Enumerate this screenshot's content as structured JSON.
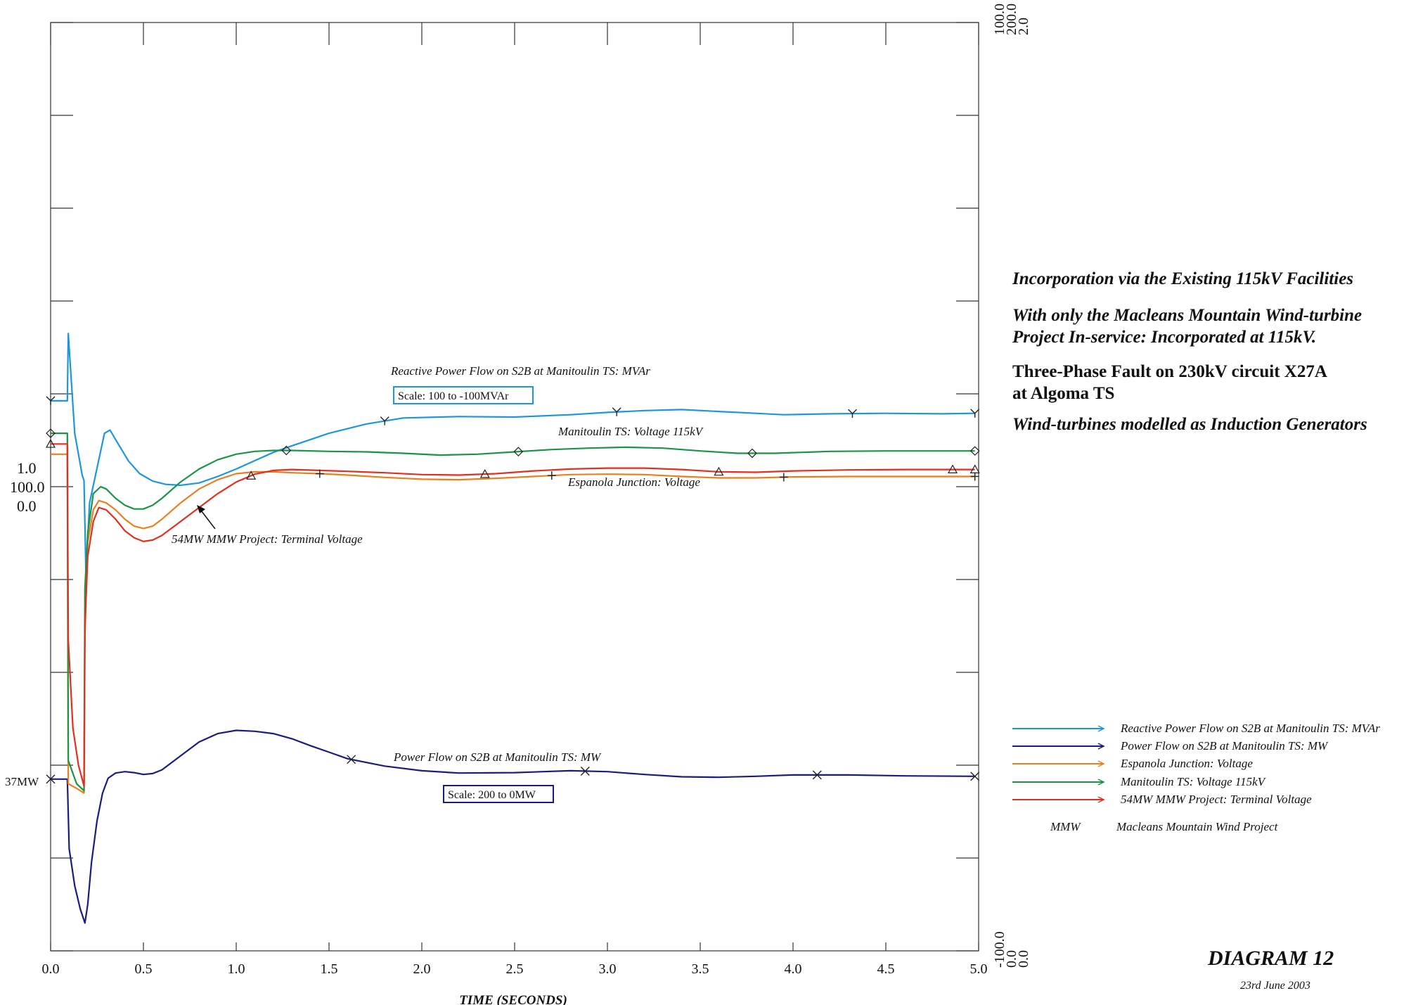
{
  "side_text": {
    "line1": "Incorporation via the Existing 115kV Facilities",
    "line2a": "With only the Macleans Mountain Wind-turbine",
    "line2b": "Project In-service:  Incorporated at 115kV.",
    "line3a": "Three-Phase Fault on 230kV circuit X27A",
    "line3b": "at Algoma TS",
    "line4": "Wind-turbines modelled as Induction Generators"
  },
  "diagram": {
    "label": "DIAGRAM 12",
    "date": "23rd June 2003"
  },
  "chart_data": {
    "type": "line",
    "xlabel": "TIME  (SECONDS)",
    "xlim": [
      0.0,
      5.0
    ],
    "x_ticks": [
      "0.0",
      "0.5",
      "1.0",
      "1.5",
      "2.0",
      "2.5",
      "3.0",
      "3.5",
      "4.0",
      "4.5",
      "5.0"
    ],
    "right_axis_top": [
      "100.0",
      "200.0",
      "2.0"
    ],
    "right_axis_bottom": [
      "-100.0",
      "0.0",
      "0.0"
    ],
    "left_axis_mid": [
      "1.0",
      "100.0",
      "0.0"
    ],
    "left_annotation": "37MW",
    "annotations": {
      "reactive_label": "Reactive Power Flow on S2B at Manitoulin TS: MVAr",
      "reactive_scale": "Scale: 100 to -100MVAr",
      "manitoulin_label": "Manitoulin TS: Voltage 115kV",
      "espanola_label": "Espanola Junction: Voltage",
      "terminal_label": "54MW MMW Project: Terminal Voltage",
      "power_label": "Power Flow on S2B at Manitoulin TS: MW",
      "power_scale": "Scale: 200 to 0MW"
    },
    "legend": {
      "placement": "bottom-right",
      "entries": [
        "Reactive Power Flow on S2B at Manitoulin TS: MVAr",
        "Power Flow on S2B at Manitoulin TS: MW",
        "Espanola Junction: Voltage",
        "Manitoulin TS: Voltage 115kV",
        "54MW MMW Project: Terminal Voltage"
      ],
      "abbrev_key": "MMW",
      "abbrev_value": "Macleans Mountain Wind Project"
    },
    "series": [
      {
        "name": "Reactive Power Flow on S2B at Manitoulin TS: MVAr",
        "color": "#1e96dc",
        "scale": [
          -100,
          100
        ],
        "points": [
          [
            0,
            18.5
          ],
          [
            0.09,
            18.5
          ],
          [
            0.095,
            33
          ],
          [
            0.13,
            11.5
          ],
          [
            0.17,
            2.5
          ],
          [
            0.18,
            1.3
          ],
          [
            0.19,
            -18.5
          ],
          [
            0.21,
            -3.5
          ],
          [
            0.25,
            4
          ],
          [
            0.29,
            11.5
          ],
          [
            0.32,
            12.2
          ],
          [
            0.36,
            9.5
          ],
          [
            0.42,
            5.5
          ],
          [
            0.48,
            2.8
          ],
          [
            0.55,
            1.2
          ],
          [
            0.62,
            0.5
          ],
          [
            0.7,
            0.3
          ],
          [
            0.8,
            0.8
          ],
          [
            0.9,
            2.2
          ],
          [
            1.0,
            3.8
          ],
          [
            1.1,
            5.6
          ],
          [
            1.2,
            7.4
          ],
          [
            1.3,
            8.8
          ],
          [
            1.5,
            11.5
          ],
          [
            1.7,
            13.5
          ],
          [
            1.9,
            14.8
          ],
          [
            2.2,
            15.1
          ],
          [
            2.5,
            15.0
          ],
          [
            2.8,
            15.5
          ],
          [
            3.0,
            16.0
          ],
          [
            3.2,
            16.4
          ],
          [
            3.4,
            16.6
          ],
          [
            3.6,
            16.2
          ],
          [
            3.8,
            15.8
          ],
          [
            3.95,
            15.5
          ],
          [
            4.2,
            15.7
          ],
          [
            4.5,
            15.8
          ],
          [
            4.8,
            15.7
          ],
          [
            4.98,
            15.8
          ]
        ]
      },
      {
        "name": "Power Flow on S2B at Manitoulin TS: MW",
        "color": "#1c1c7a",
        "scale": [
          0,
          200
        ],
        "points": [
          [
            0,
            37
          ],
          [
            0.09,
            37
          ],
          [
            0.1,
            22
          ],
          [
            0.13,
            14
          ],
          [
            0.16,
            9
          ],
          [
            0.185,
            6
          ],
          [
            0.2,
            10
          ],
          [
            0.22,
            19
          ],
          [
            0.25,
            28
          ],
          [
            0.28,
            34
          ],
          [
            0.31,
            37.2
          ],
          [
            0.35,
            38.3
          ],
          [
            0.4,
            38.6
          ],
          [
            0.45,
            38.4
          ],
          [
            0.5,
            38.0
          ],
          [
            0.55,
            38.2
          ],
          [
            0.6,
            39
          ],
          [
            0.7,
            42
          ],
          [
            0.8,
            45
          ],
          [
            0.9,
            46.8
          ],
          [
            1.0,
            47.5
          ],
          [
            1.1,
            47.3
          ],
          [
            1.2,
            46.8
          ],
          [
            1.3,
            45.7
          ],
          [
            1.4,
            44.2
          ],
          [
            1.5,
            42.8
          ],
          [
            1.6,
            41.4
          ],
          [
            1.8,
            39.8
          ],
          [
            2.0,
            38.8
          ],
          [
            2.2,
            38.3
          ],
          [
            2.5,
            38.4
          ],
          [
            2.8,
            38.8
          ],
          [
            3.0,
            38.6
          ],
          [
            3.2,
            38.0
          ],
          [
            3.4,
            37.5
          ],
          [
            3.6,
            37.4
          ],
          [
            3.8,
            37.6
          ],
          [
            4.0,
            37.9
          ],
          [
            4.3,
            37.9
          ],
          [
            4.6,
            37.7
          ],
          [
            4.98,
            37.6
          ]
        ]
      },
      {
        "name": "Espanola Junction: Voltage",
        "color": "#e88020",
        "scale": [
          0,
          2
        ],
        "points": [
          [
            0,
            1.07
          ],
          [
            0.09,
            1.07
          ],
          [
            0.095,
            0.36
          ],
          [
            0.14,
            0.35
          ],
          [
            0.18,
            0.34
          ],
          [
            0.185,
            0.68
          ],
          [
            0.2,
            0.88
          ],
          [
            0.23,
            0.95
          ],
          [
            0.26,
            0.97
          ],
          [
            0.3,
            0.965
          ],
          [
            0.35,
            0.95
          ],
          [
            0.4,
            0.93
          ],
          [
            0.45,
            0.915
          ],
          [
            0.5,
            0.91
          ],
          [
            0.55,
            0.915
          ],
          [
            0.6,
            0.93
          ],
          [
            0.7,
            0.965
          ],
          [
            0.8,
            0.995
          ],
          [
            0.9,
            1.015
          ],
          [
            1.0,
            1.028
          ],
          [
            1.1,
            1.032
          ],
          [
            1.2,
            1.032
          ],
          [
            1.3,
            1.03
          ],
          [
            1.45,
            1.028
          ],
          [
            1.6,
            1.025
          ],
          [
            1.8,
            1.02
          ],
          [
            2.0,
            1.016
          ],
          [
            2.2,
            1.015
          ],
          [
            2.4,
            1.018
          ],
          [
            2.6,
            1.022
          ],
          [
            2.8,
            1.026
          ],
          [
            3.0,
            1.027
          ],
          [
            3.2,
            1.026
          ],
          [
            3.4,
            1.022
          ],
          [
            3.6,
            1.019
          ],
          [
            3.8,
            1.019
          ],
          [
            4.0,
            1.021
          ],
          [
            4.3,
            1.022
          ],
          [
            4.6,
            1.022
          ],
          [
            4.98,
            1.022
          ]
        ]
      },
      {
        "name": "Manitoulin TS: Voltage 115kV",
        "color": "#1a9445",
        "scale": [
          0,
          2
        ],
        "points": [
          [
            0,
            1.115
          ],
          [
            0.09,
            1.115
          ],
          [
            0.095,
            0.41
          ],
          [
            0.14,
            0.36
          ],
          [
            0.18,
            0.345
          ],
          [
            0.185,
            0.78
          ],
          [
            0.2,
            0.9
          ],
          [
            0.23,
            0.985
          ],
          [
            0.27,
            1.0
          ],
          [
            0.3,
            0.995
          ],
          [
            0.35,
            0.975
          ],
          [
            0.4,
            0.96
          ],
          [
            0.45,
            0.952
          ],
          [
            0.5,
            0.952
          ],
          [
            0.55,
            0.96
          ],
          [
            0.6,
            0.975
          ],
          [
            0.7,
            1.01
          ],
          [
            0.8,
            1.038
          ],
          [
            0.9,
            1.058
          ],
          [
            1.0,
            1.07
          ],
          [
            1.1,
            1.076
          ],
          [
            1.2,
            1.078
          ],
          [
            1.3,
            1.078
          ],
          [
            1.5,
            1.076
          ],
          [
            1.7,
            1.075
          ],
          [
            1.9,
            1.072
          ],
          [
            2.1,
            1.068
          ],
          [
            2.3,
            1.07
          ],
          [
            2.5,
            1.075
          ],
          [
            2.7,
            1.08
          ],
          [
            2.9,
            1.083
          ],
          [
            3.1,
            1.085
          ],
          [
            3.3,
            1.083
          ],
          [
            3.5,
            1.077
          ],
          [
            3.7,
            1.072
          ],
          [
            3.9,
            1.072
          ],
          [
            4.2,
            1.076
          ],
          [
            4.5,
            1.077
          ],
          [
            4.98,
            1.077
          ]
        ]
      },
      {
        "name": "54MW MMW Project: Terminal Voltage",
        "color": "#e03020",
        "scale": [
          0,
          2
        ],
        "points": [
          [
            0,
            1.092
          ],
          [
            0.09,
            1.092
          ],
          [
            0.095,
            0.67
          ],
          [
            0.12,
            0.48
          ],
          [
            0.15,
            0.4
          ],
          [
            0.18,
            0.355
          ],
          [
            0.185,
            0.7
          ],
          [
            0.2,
            0.85
          ],
          [
            0.23,
            0.925
          ],
          [
            0.26,
            0.955
          ],
          [
            0.3,
            0.95
          ],
          [
            0.35,
            0.93
          ],
          [
            0.4,
            0.905
          ],
          [
            0.45,
            0.89
          ],
          [
            0.5,
            0.882
          ],
          [
            0.55,
            0.885
          ],
          [
            0.6,
            0.895
          ],
          [
            0.7,
            0.925
          ],
          [
            0.8,
            0.955
          ],
          [
            0.9,
            0.985
          ],
          [
            1.0,
            1.01
          ],
          [
            1.1,
            1.027
          ],
          [
            1.2,
            1.035
          ],
          [
            1.3,
            1.037
          ],
          [
            1.45,
            1.035
          ],
          [
            1.6,
            1.033
          ],
          [
            1.8,
            1.03
          ],
          [
            2.0,
            1.026
          ],
          [
            2.2,
            1.025
          ],
          [
            2.4,
            1.028
          ],
          [
            2.6,
            1.034
          ],
          [
            2.8,
            1.038
          ],
          [
            3.0,
            1.04
          ],
          [
            3.2,
            1.04
          ],
          [
            3.4,
            1.037
          ],
          [
            3.6,
            1.032
          ],
          [
            3.8,
            1.031
          ],
          [
            4.0,
            1.034
          ],
          [
            4.3,
            1.036
          ],
          [
            4.6,
            1.037
          ],
          [
            4.98,
            1.037
          ]
        ]
      }
    ]
  }
}
